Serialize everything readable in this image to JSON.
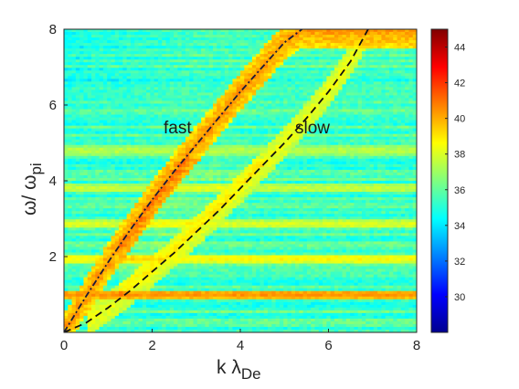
{
  "chart_data": {
    "type": "heatmap",
    "title": "",
    "xlabel": {
      "main": "k λ",
      "sub": "De"
    },
    "ylabel": {
      "main": "ω/ ω",
      "sub": "pi"
    },
    "xlim": [
      0,
      8
    ],
    "ylim": [
      0,
      8
    ],
    "x_ticks": [
      "0",
      "2",
      "4",
      "6",
      "8"
    ],
    "y_ticks": [
      "2",
      "4",
      "6",
      "8"
    ],
    "colorbar": {
      "min": 28,
      "max": 45,
      "ticks": [
        "30",
        "32",
        "34",
        "36",
        "38",
        "40",
        "42",
        "44"
      ],
      "colormap": "jet"
    },
    "background_level": 35.5,
    "horizontal_bands": [
      {
        "y": 1.0,
        "level": 40.5
      },
      {
        "y": 1.95,
        "level": 38.8
      },
      {
        "y": 2.85,
        "level": 38.2
      },
      {
        "y": 3.8,
        "level": 37.8
      },
      {
        "y": 4.8,
        "level": 37.6
      }
    ],
    "series": [
      {
        "name": "fast",
        "style": "dash-dot",
        "color": "#1a1a3a",
        "x": [
          0,
          0.5,
          1.0,
          1.5,
          2.0,
          2.5,
          3.0,
          3.5,
          4.0,
          4.5,
          5.0,
          5.4
        ],
        "y": [
          0,
          0.95,
          1.85,
          2.7,
          3.5,
          4.25,
          4.95,
          5.65,
          6.35,
          7.0,
          7.65,
          8.0
        ]
      },
      {
        "name": "slow",
        "style": "dashed",
        "color": "#111111",
        "x": [
          0,
          0.5,
          1.0,
          1.5,
          2.0,
          2.5,
          3.0,
          3.5,
          4.0,
          4.5,
          5.0,
          5.5,
          6.0,
          6.5,
          6.9
        ],
        "y": [
          0,
          0.25,
          0.65,
          1.1,
          1.6,
          2.1,
          2.65,
          3.2,
          3.8,
          4.4,
          5.0,
          5.65,
          6.35,
          7.15,
          8.0
        ]
      }
    ],
    "annotations": [
      {
        "text": "fast",
        "x": 2.2,
        "y": 5.3
      },
      {
        "text": "slow",
        "x": 5.2,
        "y": 5.3
      }
    ]
  }
}
